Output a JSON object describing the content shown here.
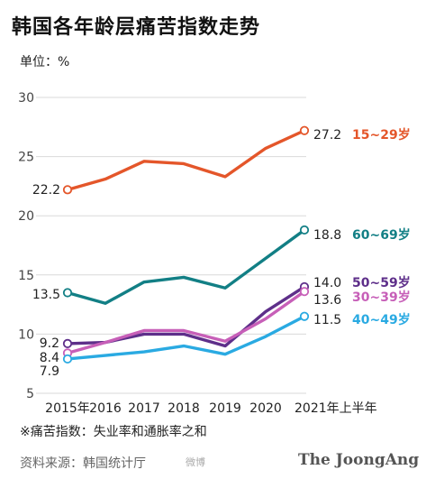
{
  "title": "韩国各年龄层痛苦指数走势",
  "unit_label": "单位：%",
  "footnote": "※痛苦指数：失业率和通胀率之和",
  "source": "资料来源：韩国统计厅",
  "watermark": "微博",
  "brand": "The JoongAng",
  "chart_data": {
    "type": "line",
    "x": [
      "2015年",
      "2016",
      "2017",
      "2018",
      "2019",
      "2020",
      "2021年上半年"
    ],
    "ylim": [
      5,
      30
    ],
    "yticks": [
      5,
      10,
      15,
      20,
      25,
      30
    ],
    "grid": true,
    "series": [
      {
        "name": "15~29岁",
        "color": "#e4562a",
        "values": [
          22.2,
          23.1,
          24.6,
          24.4,
          23.3,
          25.7,
          27.2
        ],
        "start_label": "22.2",
        "end_label": "27.2"
      },
      {
        "name": "60~69岁",
        "color": "#127f85",
        "values": [
          13.5,
          12.6,
          14.4,
          14.8,
          13.9,
          16.4,
          18.8
        ],
        "start_label": "13.5",
        "end_label": "18.8"
      },
      {
        "name": "50~59岁",
        "color": "#5e2f8a",
        "values": [
          9.2,
          9.3,
          10.0,
          10.0,
          9.0,
          11.9,
          14.0
        ],
        "start_label": "9.2",
        "end_label": "14.0"
      },
      {
        "name": "30~39岁",
        "color": "#c75fb8",
        "values": [
          8.4,
          9.3,
          10.3,
          10.3,
          9.4,
          11.3,
          13.6
        ],
        "start_label": "8.4",
        "end_label": "13.6"
      },
      {
        "name": "40~49岁",
        "color": "#2aaae2",
        "values": [
          7.9,
          8.2,
          8.5,
          9.0,
          8.3,
          9.8,
          11.5
        ],
        "start_label": "7.9",
        "end_label": "11.5"
      }
    ]
  }
}
